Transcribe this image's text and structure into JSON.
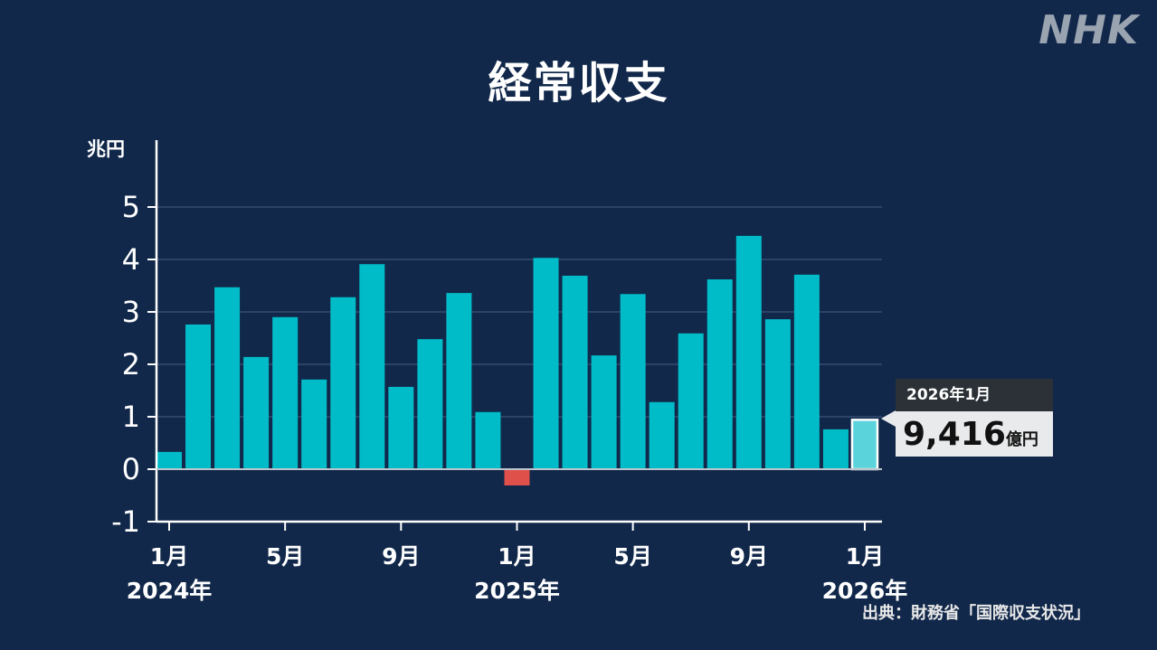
{
  "logo": "NHK",
  "source": "出典：財務省「国際収支状況」",
  "colors": {
    "background": "#11284a",
    "positive": "#00bcc8",
    "negative": "#e0504a",
    "highlight": "#5ad3da",
    "grid": "#2a4366"
  },
  "callout": {
    "period": "2026年1月",
    "value": "9,416",
    "unit": "億円"
  },
  "chart_data": {
    "type": "bar",
    "title": "経常収支",
    "ylabel": "兆円",
    "ylim": [
      -1,
      5
    ],
    "yticks": [
      "-1",
      "0",
      "1",
      "2",
      "3",
      "4",
      "5"
    ],
    "grid": true,
    "categories": [
      "2024-01",
      "2024-02",
      "2024-03",
      "2024-04",
      "2024-05",
      "2024-06",
      "2024-07",
      "2024-08",
      "2024-09",
      "2024-10",
      "2024-11",
      "2024-12",
      "2025-01",
      "2025-02",
      "2025-03",
      "2025-04",
      "2025-05",
      "2025-06",
      "2025-07",
      "2025-08",
      "2025-09",
      "2025-10",
      "2025-11",
      "2025-12",
      "2026-01"
    ],
    "values": [
      0.33,
      2.76,
      3.47,
      2.14,
      2.9,
      1.71,
      3.28,
      3.91,
      1.57,
      2.48,
      3.36,
      1.09,
      -0.31,
      4.03,
      3.69,
      2.17,
      3.34,
      1.28,
      2.59,
      3.62,
      4.45,
      2.86,
      3.71,
      0.76,
      0.9416
    ],
    "xticks": [
      {
        "index": 0,
        "month": "1月",
        "year": "2024年"
      },
      {
        "index": 4,
        "month": "5月",
        "year": ""
      },
      {
        "index": 8,
        "month": "9月",
        "year": ""
      },
      {
        "index": 12,
        "month": "1月",
        "year": "2025年"
      },
      {
        "index": 16,
        "month": "5月",
        "year": ""
      },
      {
        "index": 20,
        "month": "9月",
        "year": ""
      },
      {
        "index": 24,
        "month": "1月",
        "year": "2026年"
      }
    ]
  }
}
